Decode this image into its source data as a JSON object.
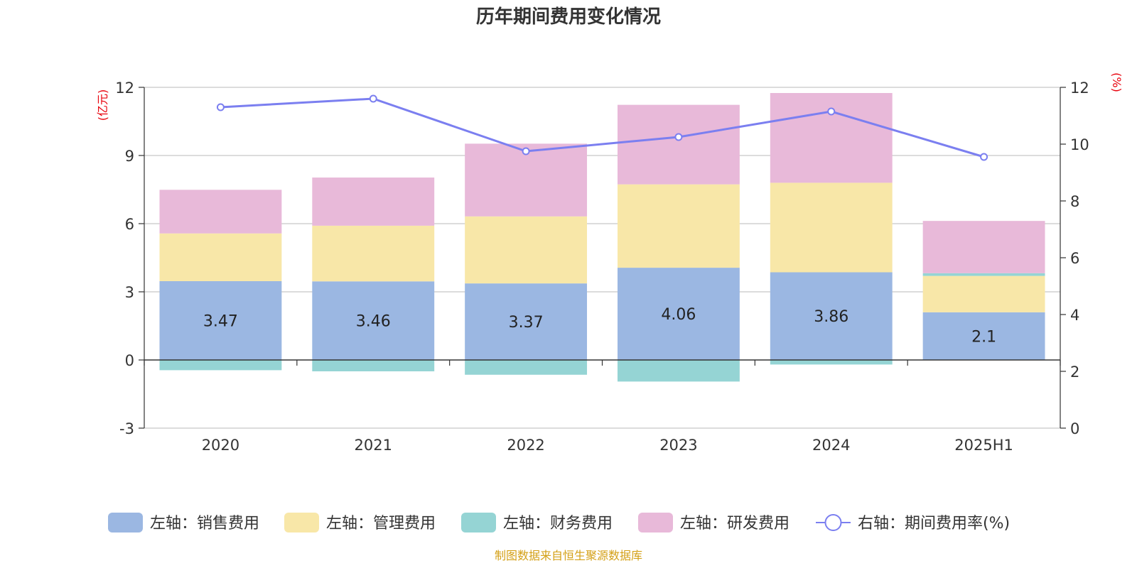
{
  "title": "历年期间费用变化情况",
  "source": "制图数据来自恒生聚源数据库",
  "left_axis_unit": "(亿元)",
  "right_axis_unit": "(%)",
  "colors": {
    "sales": "#9bb7e2",
    "admin": "#f8e7a8",
    "finance": "#95d4d4",
    "rnd": "#e8b9d9",
    "rate": "#7b7ff0",
    "grid": "#c8c8c8",
    "axis": "#333333",
    "unit": "#e8000b",
    "source": "#d4a017"
  },
  "chart_data": {
    "type": "bar",
    "stacked": true,
    "title": "历年期间费用变化情况",
    "categories": [
      "2020",
      "2021",
      "2022",
      "2023",
      "2024",
      "2025H1"
    ],
    "left_axis": {
      "ticks": [
        -3,
        0,
        3,
        6,
        9,
        12
      ],
      "ylim": [
        -3,
        12
      ],
      "unit": "(亿元)"
    },
    "right_axis": {
      "ticks": [
        0,
        2,
        4,
        6,
        8,
        10,
        12
      ],
      "ylim": [
        0,
        12
      ],
      "unit": "(%)"
    },
    "series": [
      {
        "name": "左轴：销售费用",
        "key": "sales",
        "axis": "left",
        "type": "bar",
        "values": [
          3.47,
          3.46,
          3.37,
          4.06,
          3.86,
          2.1
        ],
        "labels": [
          "3.47",
          "3.46",
          "3.37",
          "4.06",
          "3.86",
          "2.1"
        ]
      },
      {
        "name": "左轴：管理费用",
        "key": "admin",
        "axis": "left",
        "type": "bar",
        "values": [
          2.1,
          2.45,
          2.95,
          3.67,
          3.94,
          1.6
        ]
      },
      {
        "name": "左轴：财务费用",
        "key": "finance",
        "axis": "left",
        "type": "bar",
        "values": [
          -0.45,
          -0.5,
          -0.65,
          -0.95,
          -0.2,
          0.12
        ]
      },
      {
        "name": "左轴：研发费用",
        "key": "rnd",
        "axis": "left",
        "type": "bar",
        "values": [
          1.92,
          2.12,
          3.2,
          3.5,
          3.95,
          2.3
        ]
      },
      {
        "name": "右轴：期间费用率(%)",
        "key": "rate",
        "axis": "right",
        "type": "line",
        "values": [
          11.3,
          11.6,
          9.75,
          10.25,
          11.15,
          9.55
        ]
      }
    ],
    "grid": true,
    "legend_position": "bottom"
  }
}
